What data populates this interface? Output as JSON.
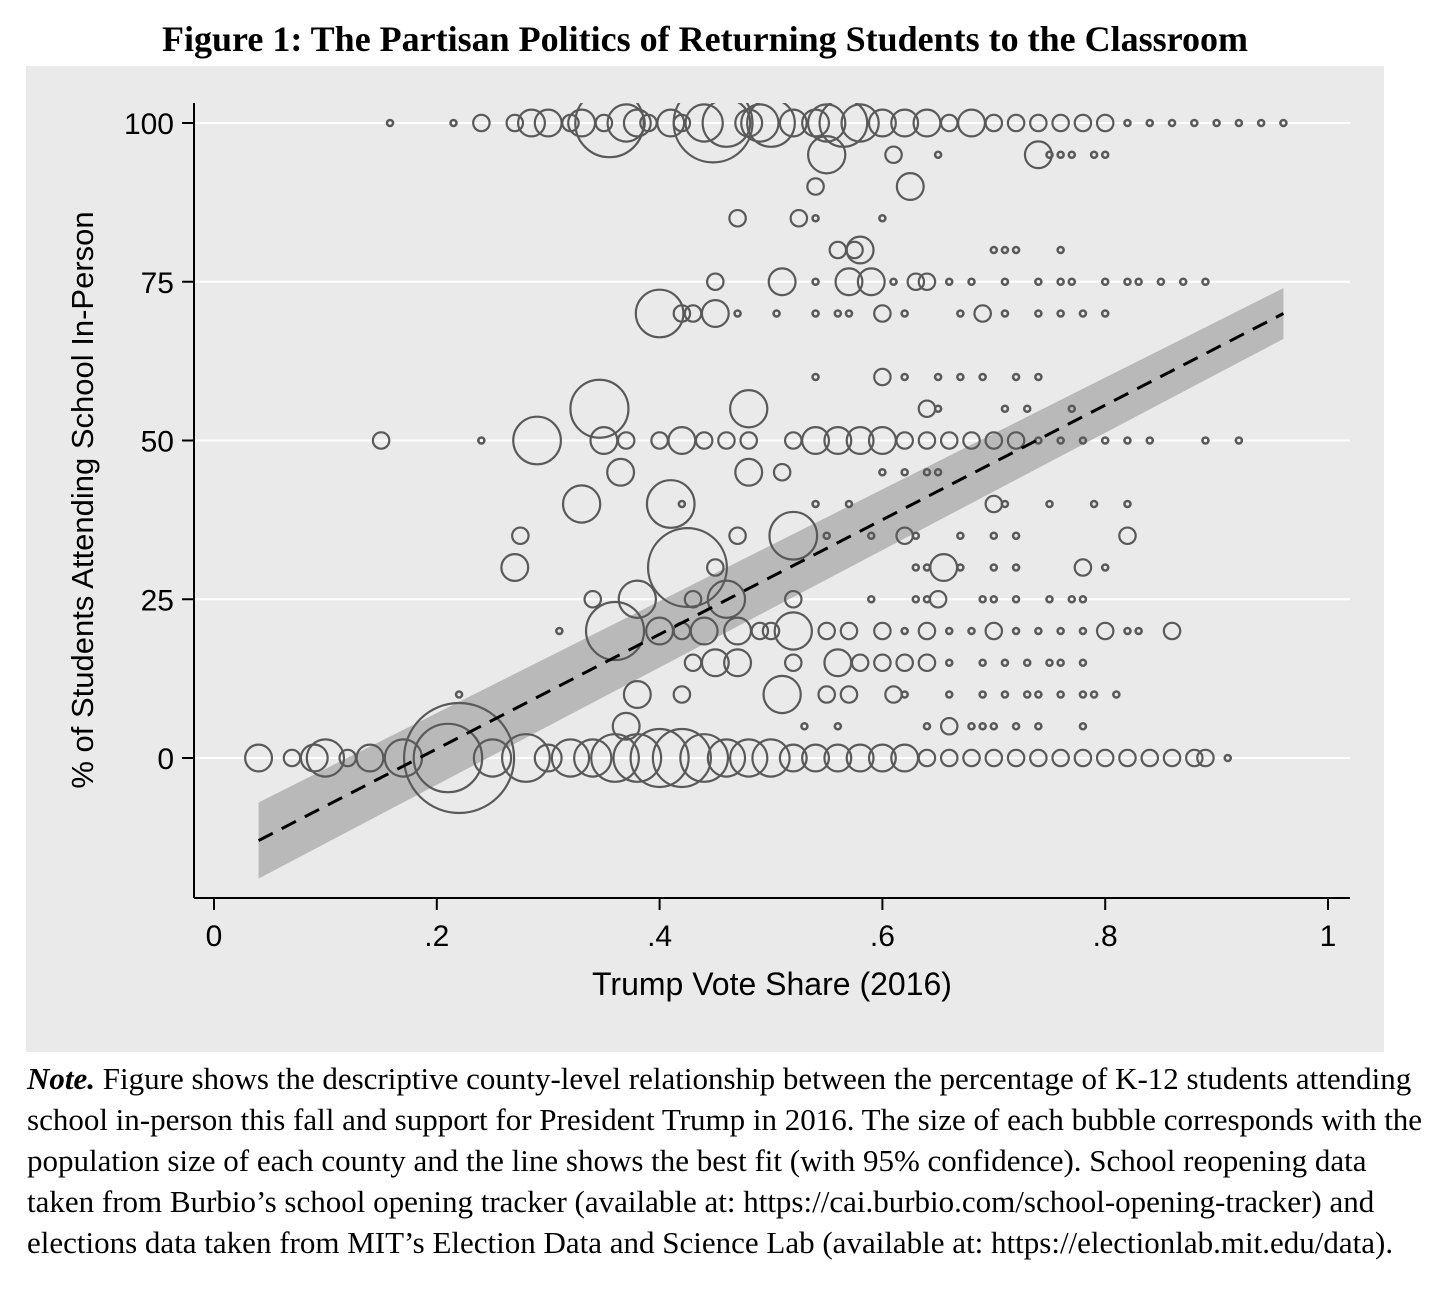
{
  "figure": {
    "title": "Figure 1: The Partisan Politics of Returning Students to the Classroom"
  },
  "note": {
    "label": "Note.",
    "text": "Figure shows the descriptive county-level relationship between the percentage of K-12 students attending school in-person this fall and support for President Trump in 2016. The size of each bubble corresponds with the population size of each county and the line shows the best fit (with 95% confidence). School reopening data taken from Burbio’s school opening tracker (available at: https://cai.burbio.com/school-opening-tracker) and elections data taken from MIT’s Election Data and Science Lab (available at: https://electionlab.mit.edu/data)."
  },
  "colors": {
    "marker": "#595959",
    "fit_line": "#000000",
    "ci_band": "#b9b9b9",
    "plot_background": "#eaeaea",
    "gridline": "#ffffff"
  },
  "chart_data": {
    "type": "scatter",
    "title": "",
    "xlabel": "Trump Vote Share (2016)",
    "ylabel": "% of Students Attending School In-Person",
    "xlim": [
      -0.02,
      1.02
    ],
    "ylim": [
      -22,
      103
    ],
    "x_ticks": [
      {
        "value": 0,
        "label": "0"
      },
      {
        "value": 0.2,
        "label": ".2"
      },
      {
        "value": 0.4,
        "label": ".4"
      },
      {
        "value": 0.6,
        "label": ".6"
      },
      {
        "value": 0.8,
        "label": ".8"
      },
      {
        "value": 1,
        "label": "1"
      }
    ],
    "y_ticks": [
      {
        "value": 0,
        "label": "0"
      },
      {
        "value": 25,
        "label": "25"
      },
      {
        "value": 50,
        "label": "50"
      },
      {
        "value": 75,
        "label": "75"
      },
      {
        "value": 100,
        "label": "100"
      }
    ],
    "grid": true,
    "marker": "hollow circle, size proportional to county population",
    "fit_line": {
      "x": [
        0.04,
        0.96
      ],
      "y": [
        -13,
        70
      ],
      "style": "dashed",
      "ci_lower": [
        -19,
        66
      ],
      "ci_upper": [
        -7,
        74
      ]
    },
    "points": [
      [
        0.158,
        100,
        1
      ],
      [
        0.215,
        100,
        1
      ],
      [
        0.24,
        100,
        2
      ],
      [
        0.27,
        100,
        2
      ],
      [
        0.285,
        100,
        3
      ],
      [
        0.3,
        100,
        3
      ],
      [
        0.32,
        100,
        2
      ],
      [
        0.33,
        100,
        3
      ],
      [
        0.35,
        100,
        2
      ],
      [
        0.355,
        100,
        7
      ],
      [
        0.37,
        100,
        4
      ],
      [
        0.38,
        100,
        3
      ],
      [
        0.39,
        100,
        2
      ],
      [
        0.41,
        100,
        3
      ],
      [
        0.42,
        100,
        2
      ],
      [
        0.44,
        100,
        4
      ],
      [
        0.448,
        100,
        8
      ],
      [
        0.46,
        100,
        5
      ],
      [
        0.48,
        100,
        3
      ],
      [
        0.49,
        100,
        4
      ],
      [
        0.5,
        100,
        5
      ],
      [
        0.52,
        100,
        3
      ],
      [
        0.54,
        100,
        3
      ],
      [
        0.55,
        100,
        4
      ],
      [
        0.565,
        100,
        5
      ],
      [
        0.58,
        100,
        4
      ],
      [
        0.6,
        100,
        3
      ],
      [
        0.62,
        100,
        3
      ],
      [
        0.64,
        100,
        3
      ],
      [
        0.66,
        100,
        2
      ],
      [
        0.68,
        100,
        3
      ],
      [
        0.7,
        100,
        2
      ],
      [
        0.72,
        100,
        2
      ],
      [
        0.74,
        100,
        2
      ],
      [
        0.76,
        100,
        2
      ],
      [
        0.78,
        100,
        2
      ],
      [
        0.8,
        100,
        2
      ],
      [
        0.82,
        100,
        1
      ],
      [
        0.84,
        100,
        1
      ],
      [
        0.86,
        100,
        1
      ],
      [
        0.88,
        100,
        1
      ],
      [
        0.9,
        100,
        1
      ],
      [
        0.92,
        100,
        1
      ],
      [
        0.94,
        100,
        1
      ],
      [
        0.96,
        100,
        1
      ],
      [
        0.55,
        95,
        4
      ],
      [
        0.61,
        95,
        2
      ],
      [
        0.65,
        95,
        1
      ],
      [
        0.74,
        95,
        3
      ],
      [
        0.75,
        95,
        1
      ],
      [
        0.76,
        95,
        1
      ],
      [
        0.77,
        95,
        1
      ],
      [
        0.79,
        95,
        1
      ],
      [
        0.8,
        95,
        1
      ],
      [
        0.54,
        90,
        2
      ],
      [
        0.625,
        90,
        3
      ],
      [
        0.47,
        85,
        2
      ],
      [
        0.525,
        85,
        2
      ],
      [
        0.54,
        85,
        1
      ],
      [
        0.6,
        85,
        1
      ],
      [
        0.56,
        80,
        2
      ],
      [
        0.575,
        80,
        2
      ],
      [
        0.58,
        80,
        3
      ],
      [
        0.7,
        80,
        1
      ],
      [
        0.71,
        80,
        1
      ],
      [
        0.72,
        80,
        1
      ],
      [
        0.76,
        80,
        1
      ],
      [
        0.45,
        75,
        2
      ],
      [
        0.51,
        75,
        3
      ],
      [
        0.54,
        75,
        1
      ],
      [
        0.57,
        75,
        3
      ],
      [
        0.59,
        75,
        3
      ],
      [
        0.61,
        75,
        1
      ],
      [
        0.63,
        75,
        2
      ],
      [
        0.64,
        75,
        2
      ],
      [
        0.66,
        75,
        1
      ],
      [
        0.68,
        75,
        1
      ],
      [
        0.71,
        75,
        1
      ],
      [
        0.74,
        75,
        1
      ],
      [
        0.76,
        75,
        1
      ],
      [
        0.77,
        75,
        1
      ],
      [
        0.8,
        75,
        1
      ],
      [
        0.82,
        75,
        1
      ],
      [
        0.83,
        75,
        1
      ],
      [
        0.85,
        75,
        1
      ],
      [
        0.87,
        75,
        1
      ],
      [
        0.89,
        75,
        1
      ],
      [
        0.4,
        70,
        5
      ],
      [
        0.42,
        70,
        2
      ],
      [
        0.43,
        70,
        2
      ],
      [
        0.45,
        70,
        3
      ],
      [
        0.47,
        70,
        1
      ],
      [
        0.505,
        70,
        1
      ],
      [
        0.54,
        70,
        1
      ],
      [
        0.56,
        70,
        1
      ],
      [
        0.57,
        70,
        1
      ],
      [
        0.6,
        70,
        2
      ],
      [
        0.62,
        70,
        1
      ],
      [
        0.67,
        70,
        1
      ],
      [
        0.69,
        70,
        2
      ],
      [
        0.71,
        70,
        1
      ],
      [
        0.74,
        70,
        1
      ],
      [
        0.76,
        70,
        1
      ],
      [
        0.78,
        70,
        1
      ],
      [
        0.8,
        70,
        1
      ],
      [
        0.54,
        60,
        1
      ],
      [
        0.6,
        60,
        2
      ],
      [
        0.62,
        60,
        1
      ],
      [
        0.65,
        60,
        1
      ],
      [
        0.67,
        60,
        1
      ],
      [
        0.69,
        60,
        1
      ],
      [
        0.72,
        60,
        1
      ],
      [
        0.74,
        60,
        1
      ],
      [
        0.346,
        55,
        6
      ],
      [
        0.48,
        55,
        4
      ],
      [
        0.64,
        55,
        2
      ],
      [
        0.65,
        55,
        1
      ],
      [
        0.71,
        55,
        1
      ],
      [
        0.73,
        55,
        1
      ],
      [
        0.77,
        55,
        1
      ],
      [
        0.15,
        50,
        2
      ],
      [
        0.24,
        50,
        1
      ],
      [
        0.29,
        50,
        5
      ],
      [
        0.35,
        50,
        3
      ],
      [
        0.37,
        50,
        2
      ],
      [
        0.4,
        50,
        2
      ],
      [
        0.42,
        50,
        3
      ],
      [
        0.44,
        50,
        2
      ],
      [
        0.46,
        50,
        2
      ],
      [
        0.48,
        50,
        2
      ],
      [
        0.52,
        50,
        2
      ],
      [
        0.54,
        50,
        3
      ],
      [
        0.56,
        50,
        3
      ],
      [
        0.58,
        50,
        3
      ],
      [
        0.6,
        50,
        3
      ],
      [
        0.62,
        50,
        2
      ],
      [
        0.64,
        50,
        2
      ],
      [
        0.66,
        50,
        2
      ],
      [
        0.68,
        50,
        2
      ],
      [
        0.7,
        50,
        2
      ],
      [
        0.72,
        50,
        2
      ],
      [
        0.74,
        50,
        1
      ],
      [
        0.76,
        50,
        1
      ],
      [
        0.78,
        50,
        1
      ],
      [
        0.8,
        50,
        1
      ],
      [
        0.82,
        50,
        1
      ],
      [
        0.84,
        50,
        1
      ],
      [
        0.89,
        50,
        1
      ],
      [
        0.92,
        50,
        1
      ],
      [
        0.365,
        45,
        3
      ],
      [
        0.48,
        45,
        3
      ],
      [
        0.51,
        45,
        2
      ],
      [
        0.6,
        45,
        1
      ],
      [
        0.62,
        45,
        1
      ],
      [
        0.64,
        45,
        1
      ],
      [
        0.65,
        45,
        1
      ],
      [
        0.33,
        40,
        4
      ],
      [
        0.41,
        40,
        5
      ],
      [
        0.42,
        40,
        1
      ],
      [
        0.54,
        40,
        1
      ],
      [
        0.57,
        40,
        1
      ],
      [
        0.7,
        40,
        2
      ],
      [
        0.71,
        40,
        1
      ],
      [
        0.75,
        40,
        1
      ],
      [
        0.79,
        40,
        1
      ],
      [
        0.82,
        40,
        1
      ],
      [
        0.275,
        35,
        2
      ],
      [
        0.47,
        35,
        2
      ],
      [
        0.52,
        35,
        5
      ],
      [
        0.55,
        35,
        1
      ],
      [
        0.59,
        35,
        1
      ],
      [
        0.62,
        35,
        2
      ],
      [
        0.63,
        35,
        1
      ],
      [
        0.67,
        35,
        1
      ],
      [
        0.7,
        35,
        1
      ],
      [
        0.72,
        35,
        1
      ],
      [
        0.82,
        35,
        2
      ],
      [
        0.27,
        30,
        3
      ],
      [
        0.425,
        30,
        8
      ],
      [
        0.45,
        30,
        2
      ],
      [
        0.63,
        30,
        1
      ],
      [
        0.64,
        30,
        1
      ],
      [
        0.655,
        30,
        3
      ],
      [
        0.67,
        30,
        1
      ],
      [
        0.7,
        30,
        1
      ],
      [
        0.72,
        30,
        1
      ],
      [
        0.78,
        30,
        2
      ],
      [
        0.8,
        30,
        1
      ],
      [
        0.34,
        25,
        2
      ],
      [
        0.38,
        25,
        4
      ],
      [
        0.43,
        25,
        2
      ],
      [
        0.46,
        25,
        4
      ],
      [
        0.52,
        25,
        2
      ],
      [
        0.59,
        25,
        1
      ],
      [
        0.63,
        25,
        1
      ],
      [
        0.64,
        25,
        1
      ],
      [
        0.65,
        25,
        2
      ],
      [
        0.69,
        25,
        1
      ],
      [
        0.7,
        25,
        1
      ],
      [
        0.72,
        25,
        1
      ],
      [
        0.75,
        25,
        1
      ],
      [
        0.77,
        25,
        1
      ],
      [
        0.78,
        25,
        1
      ],
      [
        0.31,
        20,
        1
      ],
      [
        0.36,
        20,
        6
      ],
      [
        0.4,
        20,
        3
      ],
      [
        0.42,
        20,
        2
      ],
      [
        0.44,
        20,
        3
      ],
      [
        0.47,
        20,
        3
      ],
      [
        0.49,
        20,
        2
      ],
      [
        0.5,
        20,
        2
      ],
      [
        0.52,
        20,
        4
      ],
      [
        0.55,
        20,
        2
      ],
      [
        0.57,
        20,
        2
      ],
      [
        0.6,
        20,
        2
      ],
      [
        0.62,
        20,
        1
      ],
      [
        0.64,
        20,
        2
      ],
      [
        0.66,
        20,
        1
      ],
      [
        0.68,
        20,
        1
      ],
      [
        0.7,
        20,
        2
      ],
      [
        0.72,
        20,
        1
      ],
      [
        0.74,
        20,
        1
      ],
      [
        0.76,
        20,
        1
      ],
      [
        0.78,
        20,
        1
      ],
      [
        0.8,
        20,
        2
      ],
      [
        0.82,
        20,
        1
      ],
      [
        0.83,
        20,
        1
      ],
      [
        0.86,
        20,
        2
      ],
      [
        0.43,
        15,
        2
      ],
      [
        0.45,
        15,
        3
      ],
      [
        0.47,
        15,
        3
      ],
      [
        0.52,
        15,
        2
      ],
      [
        0.56,
        15,
        3
      ],
      [
        0.58,
        15,
        2
      ],
      [
        0.6,
        15,
        2
      ],
      [
        0.62,
        15,
        2
      ],
      [
        0.64,
        15,
        2
      ],
      [
        0.66,
        15,
        1
      ],
      [
        0.69,
        15,
        1
      ],
      [
        0.71,
        15,
        1
      ],
      [
        0.73,
        15,
        1
      ],
      [
        0.75,
        15,
        1
      ],
      [
        0.76,
        15,
        1
      ],
      [
        0.78,
        15,
        1
      ],
      [
        0.38,
        10,
        3
      ],
      [
        0.42,
        10,
        2
      ],
      [
        0.51,
        10,
        4
      ],
      [
        0.55,
        10,
        2
      ],
      [
        0.57,
        10,
        2
      ],
      [
        0.61,
        10,
        2
      ],
      [
        0.62,
        10,
        1
      ],
      [
        0.66,
        10,
        1
      ],
      [
        0.69,
        10,
        1
      ],
      [
        0.71,
        10,
        1
      ],
      [
        0.73,
        10,
        1
      ],
      [
        0.74,
        10,
        1
      ],
      [
        0.76,
        10,
        1
      ],
      [
        0.78,
        10,
        1
      ],
      [
        0.79,
        10,
        1
      ],
      [
        0.81,
        10,
        1
      ],
      [
        0.22,
        10,
        1
      ],
      [
        0.37,
        5,
        3
      ],
      [
        0.53,
        5,
        1
      ],
      [
        0.56,
        5,
        1
      ],
      [
        0.64,
        5,
        1
      ],
      [
        0.66,
        5,
        2
      ],
      [
        0.68,
        5,
        1
      ],
      [
        0.69,
        5,
        1
      ],
      [
        0.7,
        5,
        1
      ],
      [
        0.72,
        5,
        1
      ],
      [
        0.74,
        5,
        1
      ],
      [
        0.78,
        5,
        1
      ],
      [
        0.04,
        0,
        3
      ],
      [
        0.07,
        0,
        2
      ],
      [
        0.09,
        0,
        3
      ],
      [
        0.1,
        0,
        4
      ],
      [
        0.12,
        0,
        2
      ],
      [
        0.14,
        0,
        3
      ],
      [
        0.17,
        0,
        4
      ],
      [
        0.21,
        0,
        7
      ],
      [
        0.22,
        0,
        11
      ],
      [
        0.25,
        0,
        4
      ],
      [
        0.28,
        0,
        5
      ],
      [
        0.3,
        0,
        3
      ],
      [
        0.32,
        0,
        4
      ],
      [
        0.34,
        0,
        4
      ],
      [
        0.36,
        0,
        5
      ],
      [
        0.38,
        0,
        5
      ],
      [
        0.4,
        0,
        6
      ],
      [
        0.42,
        0,
        6
      ],
      [
        0.44,
        0,
        5
      ],
      [
        0.46,
        0,
        4
      ],
      [
        0.48,
        0,
        4
      ],
      [
        0.5,
        0,
        4
      ],
      [
        0.52,
        0,
        3
      ],
      [
        0.54,
        0,
        3
      ],
      [
        0.56,
        0,
        3
      ],
      [
        0.58,
        0,
        3
      ],
      [
        0.6,
        0,
        3
      ],
      [
        0.62,
        0,
        3
      ],
      [
        0.64,
        0,
        2
      ],
      [
        0.66,
        0,
        2
      ],
      [
        0.68,
        0,
        2
      ],
      [
        0.7,
        0,
        2
      ],
      [
        0.72,
        0,
        2
      ],
      [
        0.74,
        0,
        2
      ],
      [
        0.76,
        0,
        2
      ],
      [
        0.78,
        0,
        2
      ],
      [
        0.8,
        0,
        2
      ],
      [
        0.82,
        0,
        2
      ],
      [
        0.84,
        0,
        2
      ],
      [
        0.86,
        0,
        2
      ],
      [
        0.88,
        0,
        2
      ],
      [
        0.89,
        0,
        2
      ],
      [
        0.91,
        0,
        1
      ]
    ]
  }
}
